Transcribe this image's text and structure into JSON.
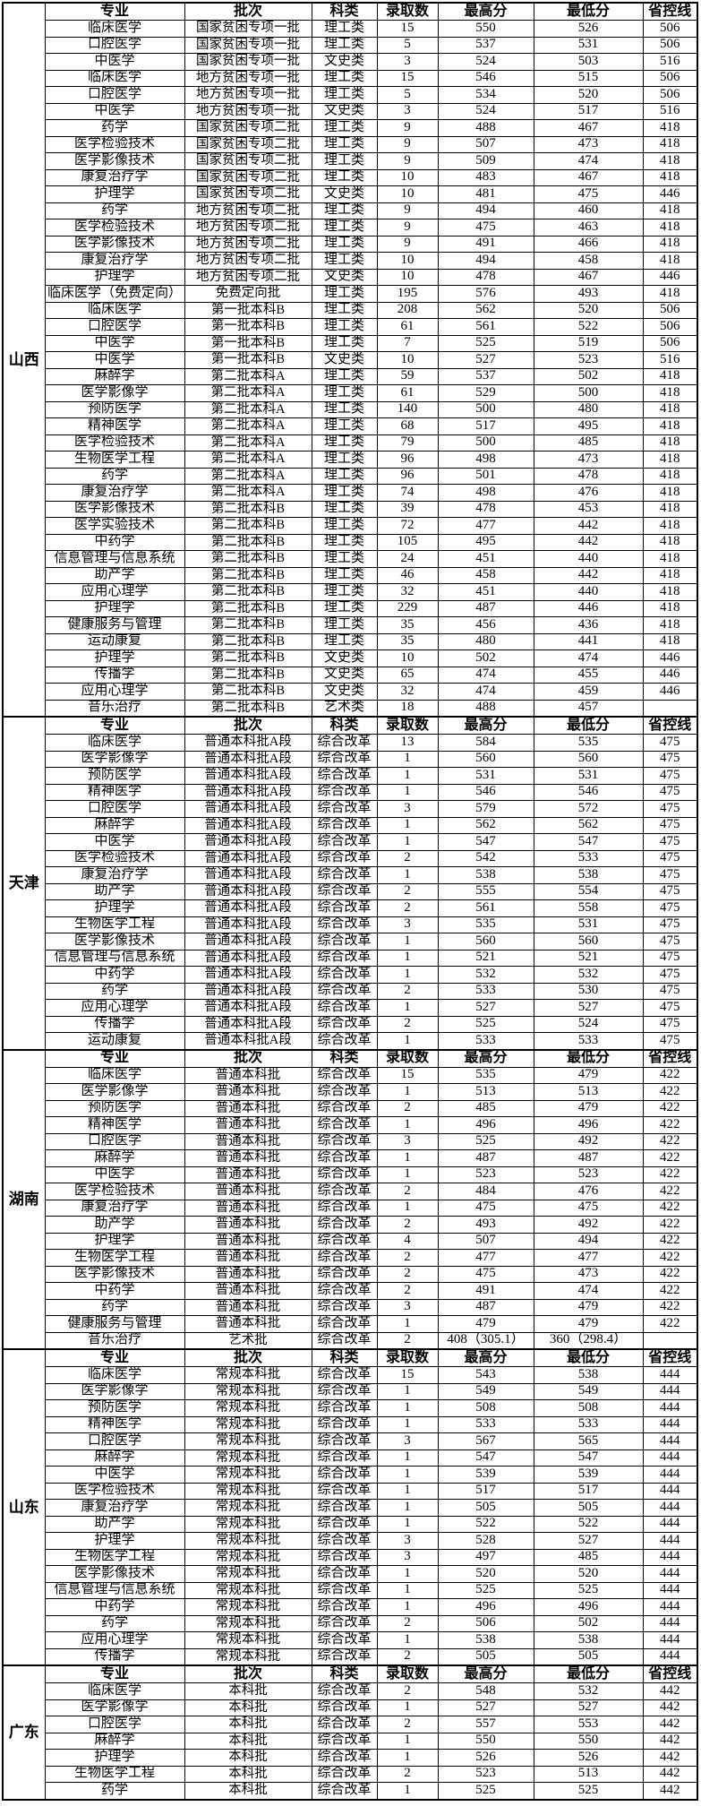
{
  "table": {
    "columns": [
      "专业",
      "批次",
      "科类",
      "录取数",
      "最高分",
      "最低分",
      "省控线"
    ],
    "sections": [
      {
        "province": "山西",
        "rows": [
          [
            "临床医学",
            "国家贫困专项一批",
            "理工类",
            "15",
            "550",
            "526",
            "506"
          ],
          [
            "口腔医学",
            "国家贫困专项一批",
            "理工类",
            "5",
            "537",
            "531",
            "506"
          ],
          [
            "中医学",
            "国家贫困专项一批",
            "文史类",
            "3",
            "524",
            "503",
            "516"
          ],
          [
            "临床医学",
            "地方贫困专项一批",
            "理工类",
            "15",
            "546",
            "515",
            "506"
          ],
          [
            "口腔医学",
            "地方贫困专项一批",
            "理工类",
            "5",
            "534",
            "520",
            "506"
          ],
          [
            "中医学",
            "地方贫困专项一批",
            "文史类",
            "3",
            "524",
            "517",
            "516"
          ],
          [
            "药学",
            "国家贫困专项二批",
            "理工类",
            "9",
            "488",
            "467",
            "418"
          ],
          [
            "医学检验技术",
            "国家贫困专项二批",
            "理工类",
            "9",
            "507",
            "473",
            "418"
          ],
          [
            "医学影像技术",
            "国家贫困专项二批",
            "理工类",
            "9",
            "509",
            "474",
            "418"
          ],
          [
            "康复治疗学",
            "国家贫困专项二批",
            "理工类",
            "10",
            "483",
            "467",
            "418"
          ],
          [
            "护理学",
            "国家贫困专项二批",
            "文史类",
            "10",
            "481",
            "475",
            "446"
          ],
          [
            "药学",
            "地方贫困专项二批",
            "理工类",
            "9",
            "494",
            "460",
            "418"
          ],
          [
            "医学检验技术",
            "地方贫困专项二批",
            "理工类",
            "9",
            "475",
            "463",
            "418"
          ],
          [
            "医学影像技术",
            "地方贫困专项二批",
            "理工类",
            "9",
            "491",
            "466",
            "418"
          ],
          [
            "康复治疗学",
            "地方贫困专项二批",
            "理工类",
            "10",
            "494",
            "458",
            "418"
          ],
          [
            "护理学",
            "地方贫困专项二批",
            "文史类",
            "10",
            "478",
            "467",
            "446"
          ],
          [
            "临床医学（免费定向）",
            "免费定向批",
            "理工类",
            "195",
            "576",
            "493",
            "418"
          ],
          [
            "临床医学",
            "第一批本科B",
            "理工类",
            "208",
            "562",
            "520",
            "506"
          ],
          [
            "口腔医学",
            "第一批本科B",
            "理工类",
            "61",
            "561",
            "522",
            "506"
          ],
          [
            "中医学",
            "第一批本科B",
            "理工类",
            "7",
            "525",
            "519",
            "506"
          ],
          [
            "中医学",
            "第一批本科B",
            "文史类",
            "10",
            "527",
            "523",
            "516"
          ],
          [
            "麻醉学",
            "第二批本科A",
            "理工类",
            "59",
            "537",
            "502",
            "418"
          ],
          [
            "医学影像学",
            "第二批本科A",
            "理工类",
            "61",
            "529",
            "500",
            "418"
          ],
          [
            "预防医学",
            "第二批本科A",
            "理工类",
            "140",
            "500",
            "480",
            "418"
          ],
          [
            "精神医学",
            "第二批本科A",
            "理工类",
            "68",
            "517",
            "495",
            "418"
          ],
          [
            "医学检验技术",
            "第二批本科A",
            "理工类",
            "79",
            "500",
            "485",
            "418"
          ],
          [
            "生物医学工程",
            "第二批本科A",
            "理工类",
            "96",
            "498",
            "473",
            "418"
          ],
          [
            "药学",
            "第二批本科A",
            "理工类",
            "96",
            "501",
            "478",
            "418"
          ],
          [
            "康复治疗学",
            "第二批本科A",
            "理工类",
            "74",
            "498",
            "476",
            "418"
          ],
          [
            "医学影像技术",
            "第二批本科B",
            "理工类",
            "39",
            "478",
            "453",
            "418"
          ],
          [
            "医学实验技术",
            "第二批本科B",
            "理工类",
            "72",
            "477",
            "442",
            "418"
          ],
          [
            "中药学",
            "第二批本科B",
            "理工类",
            "105",
            "495",
            "442",
            "418"
          ],
          [
            "信息管理与信息系统",
            "第二批本科B",
            "理工类",
            "24",
            "451",
            "440",
            "418"
          ],
          [
            "助产学",
            "第二批本科B",
            "理工类",
            "46",
            "458",
            "442",
            "418"
          ],
          [
            "应用心理学",
            "第二批本科B",
            "理工类",
            "32",
            "451",
            "440",
            "418"
          ],
          [
            "护理学",
            "第二批本科B",
            "理工类",
            "229",
            "487",
            "446",
            "418"
          ],
          [
            "健康服务与管理",
            "第二批本科B",
            "理工类",
            "35",
            "456",
            "436",
            "418"
          ],
          [
            "运动康复",
            "第二批本科B",
            "理工类",
            "35",
            "480",
            "441",
            "418"
          ],
          [
            "护理学",
            "第二批本科B",
            "文史类",
            "10",
            "502",
            "474",
            "446"
          ],
          [
            "传播学",
            "第二批本科B",
            "文史类",
            "65",
            "474",
            "455",
            "446"
          ],
          [
            "应用心理学",
            "第二批本科B",
            "文史类",
            "32",
            "474",
            "459",
            "446"
          ],
          [
            "音乐治疗",
            "第二批本科B",
            "艺术类",
            "18",
            "488",
            "457",
            ""
          ]
        ]
      },
      {
        "province": "天津",
        "rows": [
          [
            "临床医学",
            "普通本科批A段",
            "综合改革",
            "13",
            "584",
            "535",
            "475"
          ],
          [
            "医学影像学",
            "普通本科批A段",
            "综合改革",
            "1",
            "560",
            "560",
            "475"
          ],
          [
            "预防医学",
            "普通本科批A段",
            "综合改革",
            "1",
            "531",
            "531",
            "475"
          ],
          [
            "精神医学",
            "普通本科批A段",
            "综合改革",
            "1",
            "546",
            "546",
            "475"
          ],
          [
            "口腔医学",
            "普通本科批A段",
            "综合改革",
            "3",
            "579",
            "572",
            "475"
          ],
          [
            "麻醉学",
            "普通本科批A段",
            "综合改革",
            "1",
            "562",
            "562",
            "475"
          ],
          [
            "中医学",
            "普通本科批A段",
            "综合改革",
            "1",
            "547",
            "547",
            "475"
          ],
          [
            "医学检验技术",
            "普通本科批A段",
            "综合改革",
            "2",
            "542",
            "533",
            "475"
          ],
          [
            "康复治疗学",
            "普通本科批A段",
            "综合改革",
            "1",
            "538",
            "538",
            "475"
          ],
          [
            "助产学",
            "普通本科批A段",
            "综合改革",
            "2",
            "555",
            "554",
            "475"
          ],
          [
            "护理学",
            "普通本科批A段",
            "综合改革",
            "2",
            "561",
            "558",
            "475"
          ],
          [
            "生物医学工程",
            "普通本科批A段",
            "综合改革",
            "3",
            "535",
            "531",
            "475"
          ],
          [
            "医学影像技术",
            "普通本科批A段",
            "综合改革",
            "1",
            "560",
            "560",
            "475"
          ],
          [
            "信息管理与信息系统",
            "普通本科批A段",
            "综合改革",
            "1",
            "521",
            "521",
            "475"
          ],
          [
            "中药学",
            "普通本科批A段",
            "综合改革",
            "1",
            "532",
            "532",
            "475"
          ],
          [
            "药学",
            "普通本科批A段",
            "综合改革",
            "2",
            "533",
            "530",
            "475"
          ],
          [
            "应用心理学",
            "普通本科批A段",
            "综合改革",
            "1",
            "527",
            "527",
            "475"
          ],
          [
            "传播学",
            "普通本科批A段",
            "综合改革",
            "2",
            "525",
            "524",
            "475"
          ],
          [
            "运动康复",
            "普通本科批A段",
            "综合改革",
            "1",
            "533",
            "533",
            "475"
          ]
        ]
      },
      {
        "province": "湖南",
        "rows": [
          [
            "临床医学",
            "普通本科批",
            "综合改革",
            "15",
            "535",
            "479",
            "422"
          ],
          [
            "医学影像学",
            "普通本科批",
            "综合改革",
            "1",
            "513",
            "513",
            "422"
          ],
          [
            "预防医学",
            "普通本科批",
            "综合改革",
            "2",
            "485",
            "479",
            "422"
          ],
          [
            "精神医学",
            "普通本科批",
            "综合改革",
            "1",
            "496",
            "496",
            "422"
          ],
          [
            "口腔医学",
            "普通本科批",
            "综合改革",
            "3",
            "525",
            "492",
            "422"
          ],
          [
            "麻醉学",
            "普通本科批",
            "综合改革",
            "1",
            "487",
            "487",
            "422"
          ],
          [
            "中医学",
            "普通本科批",
            "综合改革",
            "1",
            "523",
            "523",
            "422"
          ],
          [
            "医学检验技术",
            "普通本科批",
            "综合改革",
            "2",
            "484",
            "476",
            "422"
          ],
          [
            "康复治疗学",
            "普通本科批",
            "综合改革",
            "1",
            "475",
            "475",
            "422"
          ],
          [
            "助产学",
            "普通本科批",
            "综合改革",
            "2",
            "493",
            "492",
            "422"
          ],
          [
            "护理学",
            "普通本科批",
            "综合改革",
            "4",
            "507",
            "494",
            "422"
          ],
          [
            "生物医学工程",
            "普通本科批",
            "综合改革",
            "2",
            "477",
            "477",
            "422"
          ],
          [
            "医学影像技术",
            "普通本科批",
            "综合改革",
            "2",
            "475",
            "473",
            "422"
          ],
          [
            "中药学",
            "普通本科批",
            "综合改革",
            "2",
            "491",
            "474",
            "422"
          ],
          [
            "药学",
            "普通本科批",
            "综合改革",
            "3",
            "487",
            "479",
            "422"
          ],
          [
            "健康服务与管理",
            "普通本科批",
            "综合改革",
            "1",
            "479",
            "479",
            "422"
          ],
          [
            "音乐治疗",
            "艺术批",
            "综合改革",
            "2",
            "408（305.1）",
            "360（298.4）",
            ""
          ]
        ]
      },
      {
        "province": "山东",
        "rows": [
          [
            "临床医学",
            "常规本科批",
            "综合改革",
            "15",
            "543",
            "538",
            "444"
          ],
          [
            "医学影像学",
            "常规本科批",
            "综合改革",
            "1",
            "549",
            "549",
            "444"
          ],
          [
            "预防医学",
            "常规本科批",
            "综合改革",
            "1",
            "508",
            "508",
            "444"
          ],
          [
            "精神医学",
            "常规本科批",
            "综合改革",
            "1",
            "533",
            "533",
            "444"
          ],
          [
            "口腔医学",
            "常规本科批",
            "综合改革",
            "3",
            "567",
            "565",
            "444"
          ],
          [
            "麻醉学",
            "常规本科批",
            "综合改革",
            "1",
            "547",
            "547",
            "444"
          ],
          [
            "中医学",
            "常规本科批",
            "综合改革",
            "1",
            "539",
            "539",
            "444"
          ],
          [
            "医学检验技术",
            "常规本科批",
            "综合改革",
            "1",
            "517",
            "517",
            "444"
          ],
          [
            "康复治疗学",
            "常规本科批",
            "综合改革",
            "1",
            "505",
            "505",
            "444"
          ],
          [
            "助产学",
            "常规本科批",
            "综合改革",
            "1",
            "522",
            "522",
            "444"
          ],
          [
            "护理学",
            "常规本科批",
            "综合改革",
            "3",
            "528",
            "527",
            "444"
          ],
          [
            "生物医学工程",
            "常规本科批",
            "综合改革",
            "3",
            "497",
            "485",
            "444"
          ],
          [
            "医学影像技术",
            "常规本科批",
            "综合改革",
            "1",
            "520",
            "520",
            "444"
          ],
          [
            "信息管理与信息系统",
            "常规本科批",
            "综合改革",
            "1",
            "525",
            "525",
            "444"
          ],
          [
            "中药学",
            "常规本科批",
            "综合改革",
            "1",
            "496",
            "496",
            "444"
          ],
          [
            "药学",
            "常规本科批",
            "综合改革",
            "2",
            "506",
            "502",
            "444"
          ],
          [
            "应用心理学",
            "常规本科批",
            "综合改革",
            "1",
            "538",
            "538",
            "444"
          ],
          [
            "传播学",
            "常规本科批",
            "综合改革",
            "2",
            "505",
            "505",
            "444"
          ]
        ]
      },
      {
        "province": "广东",
        "rows": [
          [
            "临床医学",
            "本科批",
            "综合改革",
            "2",
            "548",
            "532",
            "442"
          ],
          [
            "医学影像学",
            "本科批",
            "综合改革",
            "1",
            "527",
            "527",
            "442"
          ],
          [
            "口腔医学",
            "本科批",
            "综合改革",
            "2",
            "557",
            "553",
            "442"
          ],
          [
            "麻醉学",
            "本科批",
            "综合改革",
            "1",
            "550",
            "550",
            "442"
          ],
          [
            "护理学",
            "本科批",
            "综合改革",
            "1",
            "526",
            "526",
            "442"
          ],
          [
            "生物医学工程",
            "本科批",
            "综合改革",
            "2",
            "523",
            "513",
            "442"
          ],
          [
            "药学",
            "本科批",
            "综合改革",
            "1",
            "525",
            "525",
            "442"
          ]
        ]
      }
    ]
  }
}
